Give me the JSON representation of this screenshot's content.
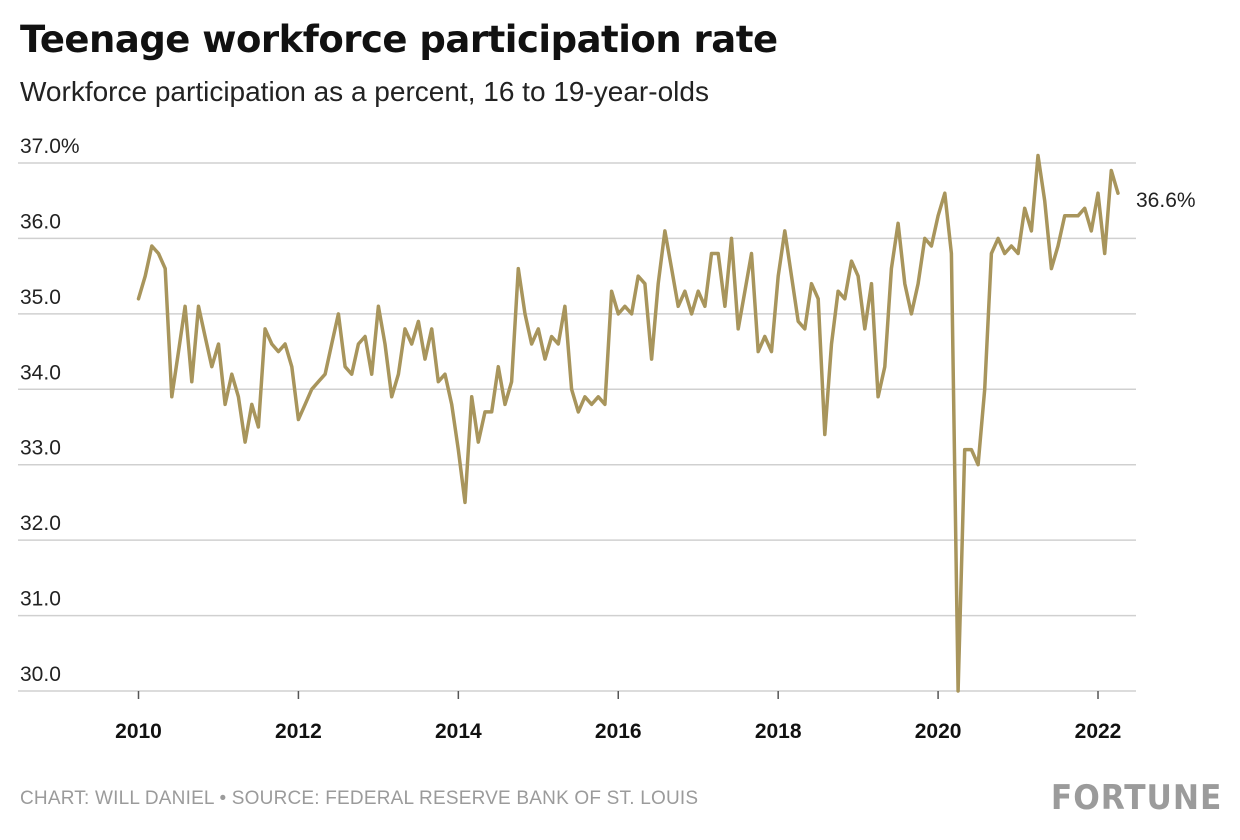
{
  "title": "Teenage workforce participation rate",
  "subtitle": "Workforce participation as a percent, 16 to 19-year-olds",
  "source": "CHART: WILL DANIEL • SOURCE: FEDERAL RESERVE BANK OF ST. LOUIS",
  "logo": "FORTUNE",
  "colors": {
    "line": "#a8955c",
    "grid": "#d0d0d0",
    "text": "#222222",
    "muted": "#9b9b9b"
  },
  "chart_data": {
    "type": "line",
    "title": "Teenage workforce participation rate",
    "subtitle": "Workforce participation as a percent, 16 to 19-year-olds",
    "ylim": [
      30,
      37
    ],
    "xlim": [
      "2010-01",
      "2022-04"
    ],
    "grid": "horizontal",
    "y_ticks": [
      {
        "value": 37,
        "label": "37.0%"
      },
      {
        "value": 36,
        "label": "36.0"
      },
      {
        "value": 35,
        "label": "35.0"
      },
      {
        "value": 34,
        "label": "34.0"
      },
      {
        "value": 33,
        "label": "33.0"
      },
      {
        "value": 32,
        "label": "32.0"
      },
      {
        "value": 31,
        "label": "31.0"
      },
      {
        "value": 30,
        "label": "30.0"
      }
    ],
    "x_ticks": [
      {
        "value": "2010-01",
        "label": "2010"
      },
      {
        "value": "2012-01",
        "label": "2012"
      },
      {
        "value": "2014-01",
        "label": "2014"
      },
      {
        "value": "2016-01",
        "label": "2016"
      },
      {
        "value": "2018-01",
        "label": "2018"
      },
      {
        "value": "2020-01",
        "label": "2020"
      },
      {
        "value": "2022-01",
        "label": "2022"
      }
    ],
    "end_label": "36.6%",
    "x": [
      "2010-01",
      "2010-02",
      "2010-03",
      "2010-04",
      "2010-05",
      "2010-06",
      "2010-07",
      "2010-08",
      "2010-09",
      "2010-10",
      "2010-11",
      "2010-12",
      "2011-01",
      "2011-02",
      "2011-03",
      "2011-04",
      "2011-05",
      "2011-06",
      "2011-07",
      "2011-08",
      "2011-09",
      "2011-10",
      "2011-11",
      "2011-12",
      "2012-01",
      "2012-02",
      "2012-03",
      "2012-04",
      "2012-05",
      "2012-06",
      "2012-07",
      "2012-08",
      "2012-09",
      "2012-10",
      "2012-11",
      "2012-12",
      "2013-01",
      "2013-02",
      "2013-03",
      "2013-04",
      "2013-05",
      "2013-06",
      "2013-07",
      "2013-08",
      "2013-09",
      "2013-10",
      "2013-11",
      "2013-12",
      "2014-01",
      "2014-02",
      "2014-03",
      "2014-04",
      "2014-05",
      "2014-06",
      "2014-07",
      "2014-08",
      "2014-09",
      "2014-10",
      "2014-11",
      "2014-12",
      "2015-01",
      "2015-02",
      "2015-03",
      "2015-04",
      "2015-05",
      "2015-06",
      "2015-07",
      "2015-08",
      "2015-09",
      "2015-10",
      "2015-11",
      "2015-12",
      "2016-01",
      "2016-02",
      "2016-03",
      "2016-04",
      "2016-05",
      "2016-06",
      "2016-07",
      "2016-08",
      "2016-09",
      "2016-10",
      "2016-11",
      "2016-12",
      "2017-01",
      "2017-02",
      "2017-03",
      "2017-04",
      "2017-05",
      "2017-06",
      "2017-07",
      "2017-08",
      "2017-09",
      "2017-10",
      "2017-11",
      "2017-12",
      "2018-01",
      "2018-02",
      "2018-03",
      "2018-04",
      "2018-05",
      "2018-06",
      "2018-07",
      "2018-08",
      "2018-09",
      "2018-10",
      "2018-11",
      "2018-12",
      "2019-01",
      "2019-02",
      "2019-03",
      "2019-04",
      "2019-05",
      "2019-06",
      "2019-07",
      "2019-08",
      "2019-09",
      "2019-10",
      "2019-11",
      "2019-12",
      "2020-01",
      "2020-02",
      "2020-03",
      "2020-04",
      "2020-05",
      "2020-06",
      "2020-07",
      "2020-08",
      "2020-09",
      "2020-10",
      "2020-11",
      "2020-12",
      "2021-01",
      "2021-02",
      "2021-03",
      "2021-04",
      "2021-05",
      "2021-06",
      "2021-07",
      "2021-08",
      "2021-09",
      "2021-10",
      "2021-11",
      "2021-12",
      "2022-01",
      "2022-02",
      "2022-03",
      "2022-04"
    ],
    "series": [
      {
        "values": [
          35.2,
          35.5,
          35.9,
          35.8,
          35.6,
          33.9,
          34.5,
          35.1,
          34.1,
          35.1,
          34.7,
          34.3,
          34.6,
          33.8,
          34.2,
          33.9,
          33.3,
          33.8,
          33.5,
          34.8,
          34.6,
          34.5,
          34.6,
          34.3,
          33.6,
          33.8,
          34.0,
          34.1,
          34.2,
          34.6,
          35.0,
          34.3,
          34.2,
          34.6,
          34.7,
          34.2,
          35.1,
          34.6,
          33.9,
          34.2,
          34.8,
          34.6,
          34.9,
          34.4,
          34.8,
          34.1,
          34.2,
          33.8,
          33.2,
          32.5,
          33.9,
          33.3,
          33.7,
          33.7,
          34.3,
          33.8,
          34.1,
          35.6,
          35.0,
          34.6,
          34.8,
          34.4,
          34.7,
          34.6,
          35.1,
          34.0,
          33.7,
          33.9,
          33.8,
          33.9,
          33.8,
          35.3,
          35.0,
          35.1,
          35.0,
          35.5,
          35.4,
          34.4,
          35.4,
          36.1,
          35.6,
          35.1,
          35.3,
          35.0,
          35.3,
          35.1,
          35.8,
          35.8,
          35.1,
          36.0,
          34.8,
          35.3,
          35.8,
          34.5,
          34.7,
          34.5,
          35.5,
          36.1,
          35.5,
          34.9,
          34.8,
          35.4,
          35.2,
          33.4,
          34.6,
          35.3,
          35.2,
          35.7,
          35.5,
          34.8,
          35.4,
          33.9,
          34.3,
          35.6,
          36.2,
          35.4,
          35.0,
          35.4,
          36.0,
          35.9,
          36.3,
          36.6,
          35.8,
          30.0,
          33.2,
          33.2,
          33.0,
          34.0,
          35.8,
          36.0,
          35.8,
          35.9,
          35.8,
          36.4,
          36.1,
          37.1,
          36.5,
          35.6,
          35.9,
          36.3,
          36.3,
          36.3,
          36.4,
          36.1,
          36.6,
          35.8,
          36.9,
          36.6
        ]
      }
    ]
  }
}
